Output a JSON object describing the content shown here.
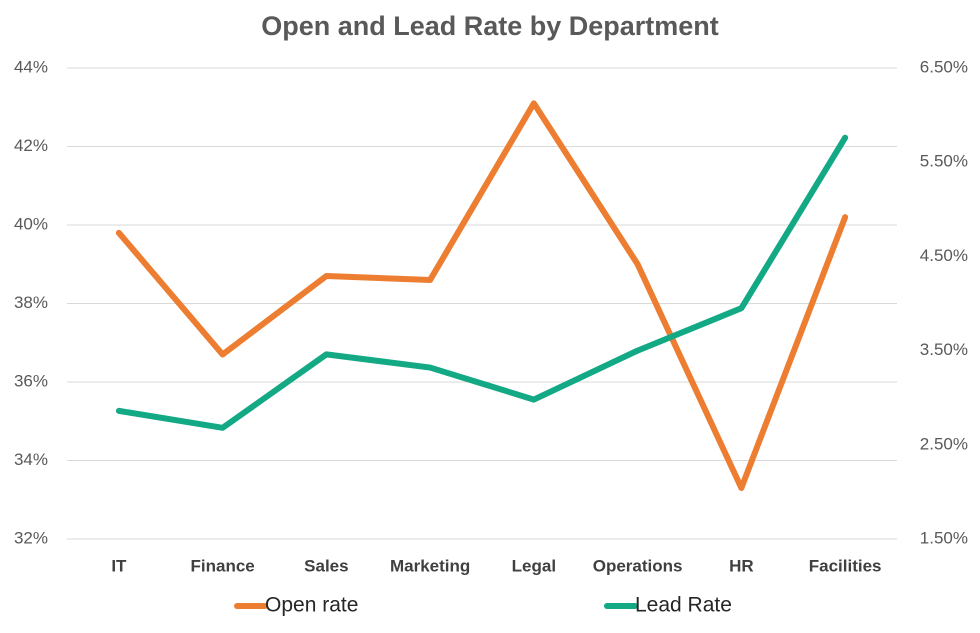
{
  "chart_data": {
    "type": "line",
    "title": "Open and Lead Rate by Department",
    "categories": [
      "IT",
      "Finance",
      "Sales",
      "Marketing",
      "Legal",
      "Operations",
      "HR",
      "Facilities"
    ],
    "series": [
      {
        "name": "Open rate",
        "color": "#ed7d31",
        "values": [
          39.8,
          36.7,
          38.7,
          38.6,
          43.1,
          39.0,
          33.3,
          40.2
        ]
      },
      {
        "name": "Lead Rate",
        "color": "#13a985",
        "axis": "y2",
        "values": [
          2.86,
          2.68,
          3.46,
          3.32,
          2.98,
          3.5,
          3.95,
          5.76
        ]
      }
    ],
    "ylim": [
      32,
      44
    ],
    "yticks": [
      {
        "value": 32,
        "label": "32%"
      },
      {
        "value": 34,
        "label": "34%"
      },
      {
        "value": 36,
        "label": "36%"
      },
      {
        "value": 38,
        "label": "38%"
      },
      {
        "value": 40,
        "label": "40%"
      },
      {
        "value": 42,
        "label": "42%"
      },
      {
        "value": 44,
        "label": "44%"
      }
    ],
    "y2lim": [
      1.5,
      6.5
    ],
    "y2ticks": [
      {
        "value": 1.5,
        "label": "1.50%"
      },
      {
        "value": 2.5,
        "label": "2.50%"
      },
      {
        "value": 3.5,
        "label": "3.50%"
      },
      {
        "value": 4.5,
        "label": "4.50%"
      },
      {
        "value": 5.5,
        "label": "5.50%"
      },
      {
        "value": 6.5,
        "label": "6.50%"
      }
    ],
    "grid": true,
    "legend": "bottom"
  }
}
